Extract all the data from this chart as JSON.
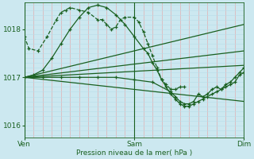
{
  "background_color": "#cce8f0",
  "grid_color_v": "#e8a0a0",
  "grid_color_h": "#b8dce8",
  "line_color": "#1a6020",
  "xlim": [
    0,
    48
  ],
  "ylim": [
    1015.75,
    1018.55
  ],
  "yticks": [
    1016,
    1017,
    1018
  ],
  "xtick_labels": [
    [
      "Ven",
      0
    ],
    [
      "Sam",
      24
    ],
    [
      "Dim",
      48
    ]
  ],
  "xlabel": "Pression niveau de la mer( hPa )",
  "series": [
    {
      "x": [
        0,
        1,
        3,
        5,
        7,
        8,
        9,
        10,
        12,
        14,
        16,
        17,
        18,
        19,
        20,
        21,
        22,
        24,
        25,
        26,
        27,
        28,
        29,
        30,
        31,
        32,
        33,
        34,
        35
      ],
      "y": [
        1017.85,
        1017.6,
        1017.55,
        1017.85,
        1018.2,
        1018.35,
        1018.4,
        1018.45,
        1018.4,
        1018.35,
        1018.2,
        1018.2,
        1018.1,
        1018.0,
        1018.05,
        1018.2,
        1018.25,
        1018.25,
        1018.15,
        1017.95,
        1017.7,
        1017.45,
        1017.2,
        1016.95,
        1016.85,
        1016.75,
        1016.75,
        1016.8,
        1016.8
      ],
      "linestyle": "--",
      "marker": "+"
    },
    {
      "x": [
        0,
        2,
        4,
        6,
        8,
        10,
        12,
        14,
        16,
        18,
        20,
        22,
        24,
        26,
        27,
        28,
        29,
        30,
        31,
        32,
        33,
        34,
        35,
        36,
        37,
        38,
        39,
        40,
        41,
        42,
        43,
        44,
        45,
        46,
        47,
        48
      ],
      "y": [
        1017.0,
        1017.05,
        1017.15,
        1017.4,
        1017.7,
        1018.0,
        1018.25,
        1018.45,
        1018.5,
        1018.45,
        1018.3,
        1018.1,
        1017.85,
        1017.6,
        1017.5,
        1017.3,
        1017.15,
        1016.95,
        1016.8,
        1016.65,
        1016.55,
        1016.45,
        1016.4,
        1016.4,
        1016.45,
        1016.5,
        1016.55,
        1016.6,
        1016.65,
        1016.7,
        1016.75,
        1016.85,
        1016.9,
        1017.0,
        1017.1,
        1017.2
      ],
      "linestyle": "-",
      "marker": "+"
    },
    {
      "x": [
        0,
        48
      ],
      "y": [
        1017.0,
        1018.1
      ],
      "linestyle": "-",
      "marker": null
    },
    {
      "x": [
        0,
        48
      ],
      "y": [
        1017.0,
        1017.55
      ],
      "linestyle": "-",
      "marker": null
    },
    {
      "x": [
        0,
        48
      ],
      "y": [
        1017.0,
        1017.25
      ],
      "linestyle": "-",
      "marker": null
    },
    {
      "x": [
        0,
        4,
        8,
        12,
        16,
        20,
        24,
        28,
        32,
        33,
        34,
        35,
        36,
        37,
        38,
        39,
        40,
        41,
        42,
        43,
        44,
        45,
        46,
        47,
        48
      ],
      "y": [
        1017.0,
        1017.0,
        1017.0,
        1017.0,
        1017.0,
        1017.0,
        1016.95,
        1016.9,
        1016.7,
        1016.6,
        1016.5,
        1016.45,
        1016.45,
        1016.5,
        1016.65,
        1016.6,
        1016.65,
        1016.75,
        1016.8,
        1016.75,
        1016.8,
        1016.85,
        1016.9,
        1017.05,
        1017.1
      ],
      "linestyle": "-",
      "marker": "+"
    },
    {
      "x": [
        0,
        48
      ],
      "y": [
        1017.0,
        1016.5
      ],
      "linestyle": "-",
      "marker": null
    }
  ]
}
